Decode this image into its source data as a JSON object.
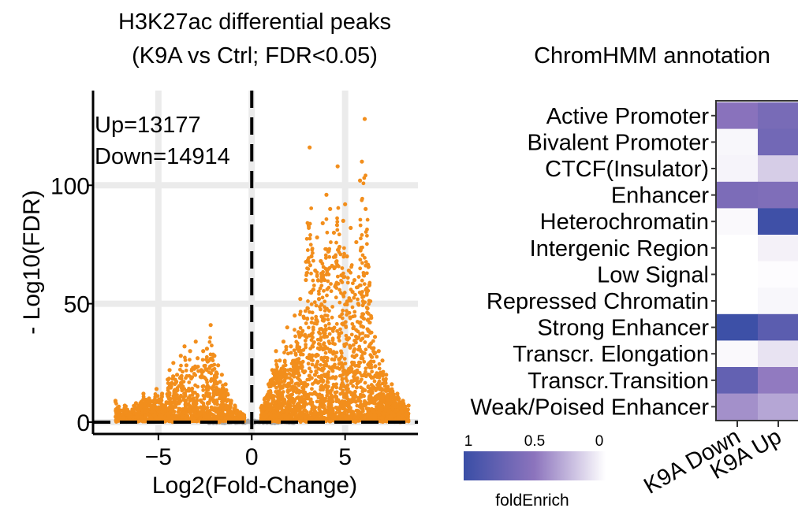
{
  "volcano": {
    "type": "scatter",
    "title_line1": "H3K27ac differential peaks",
    "title_line2": "(K9A vs Ctrl; FDR<0.05)",
    "xlabel": "Log2(Fold-Change)",
    "ylabel": "- Log10(FDR)",
    "xlim": [
      -8.5,
      8.9
    ],
    "ylim": [
      -5,
      140
    ],
    "xticks": [
      -5,
      0,
      5
    ],
    "xtick_labels": [
      "−5",
      "0",
      "5"
    ],
    "yticks": [
      0,
      50,
      100
    ],
    "ytick_labels": [
      "0",
      "50",
      "100"
    ],
    "grid": true,
    "threshold_lines": {
      "vertical_x": 0,
      "horizontal_y": 0
    },
    "annotations": [
      "Up=13177",
      "Down=14914"
    ],
    "colors": {
      "significant": "#f28e1c",
      "nonsignificant": "#a8a8a8",
      "grid": "#ebebeb"
    },
    "series": [
      {
        "role": "down",
        "points": [
          [
            -7.3,
            9
          ],
          [
            -6.8,
            7
          ],
          [
            -6.2,
            8
          ],
          [
            -5.8,
            12
          ],
          [
            -5.5,
            10
          ],
          [
            -5.1,
            14
          ],
          [
            -4.8,
            12
          ],
          [
            -4.5,
            18
          ],
          [
            -4.4,
            22
          ],
          [
            -4.2,
            25
          ],
          [
            -4.0,
            20
          ],
          [
            -3.8,
            28
          ],
          [
            -3.6,
            32
          ],
          [
            -3.5,
            24
          ],
          [
            -3.3,
            30
          ],
          [
            -3.2,
            19
          ],
          [
            -3.0,
            34
          ],
          [
            -2.9,
            27
          ],
          [
            -2.7,
            22
          ],
          [
            -2.6,
            30
          ],
          [
            -2.4,
            31
          ],
          [
            -2.3,
            26
          ],
          [
            -2.2,
            41
          ],
          [
            -2.1,
            22
          ],
          [
            -2.0,
            28
          ],
          [
            -1.9,
            21
          ],
          [
            -1.8,
            24
          ],
          [
            -1.7,
            17
          ],
          [
            -1.6,
            20
          ],
          [
            -1.5,
            13
          ],
          [
            -1.4,
            16
          ],
          [
            -1.3,
            12
          ],
          [
            -1.1,
            9
          ],
          [
            -0.9,
            7
          ],
          [
            -0.7,
            4
          ],
          [
            -0.5,
            3
          ],
          [
            -0.4,
            2
          ]
        ]
      },
      {
        "role": "up",
        "points": [
          [
            0.5,
            6
          ],
          [
            0.7,
            10
          ],
          [
            0.9,
            16
          ],
          [
            1.1,
            22
          ],
          [
            1.3,
            30
          ],
          [
            1.5,
            26
          ],
          [
            1.7,
            34
          ],
          [
            1.9,
            40
          ],
          [
            2.1,
            32
          ],
          [
            2.3,
            45
          ],
          [
            2.5,
            38
          ],
          [
            2.6,
            52
          ],
          [
            2.8,
            44
          ],
          [
            2.9,
            60
          ],
          [
            3.0,
            48
          ],
          [
            3.1,
            116
          ],
          [
            3.2,
            70
          ],
          [
            3.3,
            56
          ],
          [
            3.4,
            64
          ],
          [
            3.5,
            78
          ],
          [
            3.6,
            52
          ],
          [
            3.7,
            68
          ],
          [
            3.8,
            84
          ],
          [
            3.9,
            60
          ],
          [
            4.0,
            96
          ],
          [
            4.1,
            72
          ],
          [
            4.2,
            90
          ],
          [
            4.3,
            66
          ],
          [
            4.4,
            80
          ],
          [
            4.5,
            58
          ],
          [
            4.6,
            108
          ],
          [
            4.7,
            74
          ],
          [
            4.8,
            62
          ],
          [
            4.9,
            85
          ],
          [
            5.0,
            92
          ],
          [
            5.1,
            70
          ],
          [
            5.2,
            64
          ],
          [
            5.3,
            82
          ],
          [
            5.4,
            55
          ],
          [
            5.5,
            60
          ],
          [
            5.6,
            76
          ],
          [
            5.7,
            50
          ],
          [
            5.8,
            102
          ],
          [
            5.9,
            110
          ],
          [
            6.0,
            62
          ],
          [
            6.05,
            128
          ],
          [
            6.1,
            90
          ],
          [
            6.2,
            48
          ],
          [
            6.3,
            58
          ],
          [
            6.4,
            44
          ],
          [
            6.6,
            36
          ],
          [
            6.8,
            30
          ],
          [
            7.0,
            26
          ],
          [
            7.2,
            20
          ],
          [
            7.5,
            16
          ],
          [
            7.8,
            12
          ],
          [
            8.1,
            9
          ],
          [
            8.4,
            7
          ]
        ]
      }
    ]
  },
  "heatmap": {
    "type": "heatmap",
    "title": "ChromHMM annotation",
    "rows": [
      "Active Promoter",
      "Bivalent Promoter",
      "CTCF(Insulator)",
      "Enhancer",
      "Heterochromatin",
      "Intergenic Region",
      "Low Signal",
      "Repressed Chromatin",
      "Strong Enhancer",
      "Transcr. Elongation",
      "Transcr.Transition",
      "Weak/Poised Enhancer"
    ],
    "columns": [
      "K9A Down",
      "K9A Up"
    ],
    "values": [
      [
        0.52,
        0.62
      ],
      [
        0.03,
        0.66
      ],
      [
        0.04,
        0.18
      ],
      [
        0.6,
        0.58
      ],
      [
        0.02,
        0.97
      ],
      [
        0.0,
        0.05
      ],
      [
        0.0,
        0.01
      ],
      [
        0.0,
        0.03
      ],
      [
        0.98,
        0.8
      ],
      [
        0.02,
        0.1
      ],
      [
        0.75,
        0.48
      ],
      [
        0.4,
        0.32
      ]
    ],
    "color_low": "#ffffff",
    "color_mid": "#8c74bd",
    "color_high": "#3a4ea6",
    "legend": {
      "title": "foldEnrich",
      "ticks": [
        1,
        0.5,
        0
      ],
      "tick_labels": [
        "1",
        "0.5",
        "0"
      ]
    }
  }
}
